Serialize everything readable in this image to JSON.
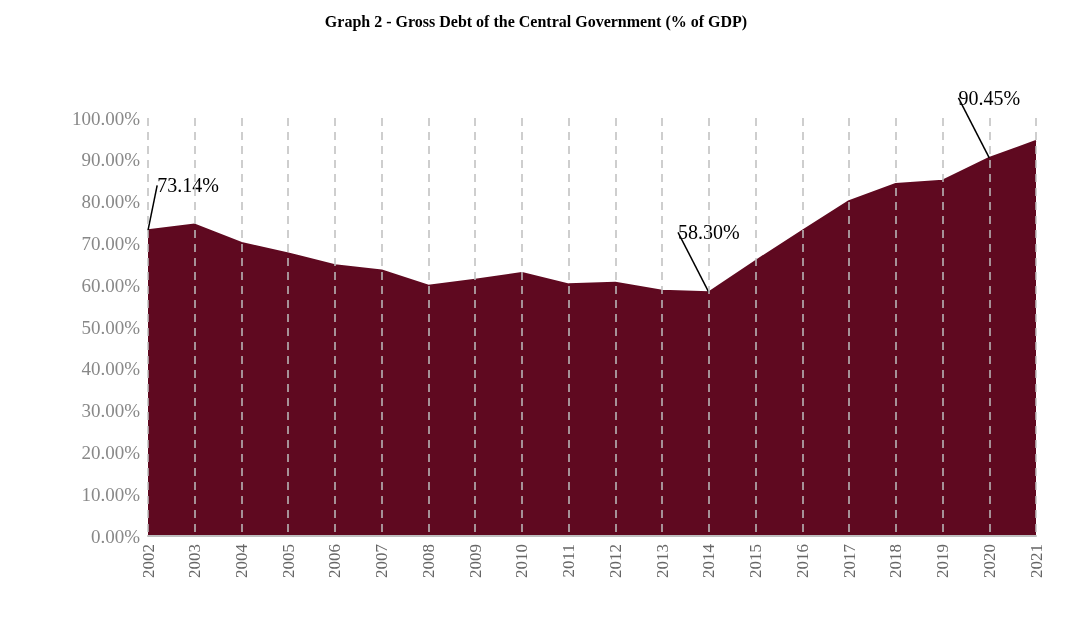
{
  "chart_data": {
    "type": "area",
    "title": "Graph 2 - Gross Debt of the Central Government (% of GDP)",
    "categories": [
      "2002",
      "2003",
      "2004",
      "2005",
      "2006",
      "2007",
      "2008",
      "2009",
      "2010",
      "2011",
      "2012",
      "2013",
      "2014",
      "2015",
      "2016",
      "2017",
      "2018",
      "2019",
      "2020",
      "2021"
    ],
    "series": [
      {
        "color": "#5f0920",
        "values": [
          73.14,
          74.5,
          70.1,
          67.6,
          64.8,
          63.5,
          59.9,
          61.3,
          62.9,
          60.2,
          60.6,
          58.7,
          58.3,
          65.8,
          73.0,
          80.1,
          84.2,
          85.0,
          90.45,
          94.5
        ],
        "value_labels": [
          "73.14%",
          null,
          null,
          null,
          null,
          null,
          null,
          null,
          null,
          null,
          null,
          null,
          "58.30%",
          null,
          null,
          null,
          null,
          null,
          "90.45%",
          null
        ]
      }
    ],
    "ylim": [
      0,
      100
    ],
    "yticks": [
      {
        "value": 0,
        "label": "0.00%"
      },
      {
        "value": 10,
        "label": "10.00%"
      },
      {
        "value": 20,
        "label": "20.00%"
      },
      {
        "value": 30,
        "label": "30.00%"
      },
      {
        "value": 40,
        "label": "40.00%"
      },
      {
        "value": 50,
        "label": "50.00%"
      },
      {
        "value": 60,
        "label": "60.00%"
      },
      {
        "value": 70,
        "label": "70.00%"
      },
      {
        "value": 80,
        "label": "80.00%"
      },
      {
        "value": 90,
        "label": "90.00%"
      },
      {
        "value": 100,
        "label": "100.00%"
      }
    ],
    "grid": "x",
    "line_style": "solid",
    "marker": "none"
  }
}
